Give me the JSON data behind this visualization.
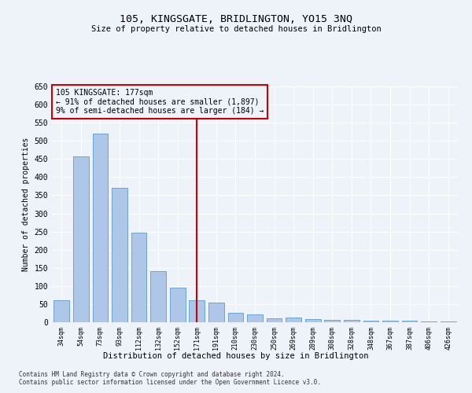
{
  "title": "105, KINGSGATE, BRIDLINGTON, YO15 3NQ",
  "subtitle": "Size of property relative to detached houses in Bridlington",
  "xlabel": "Distribution of detached houses by size in Bridlington",
  "ylabel": "Number of detached properties",
  "categories": [
    "34sqm",
    "54sqm",
    "73sqm",
    "93sqm",
    "112sqm",
    "132sqm",
    "152sqm",
    "171sqm",
    "191sqm",
    "210sqm",
    "230sqm",
    "250sqm",
    "269sqm",
    "289sqm",
    "308sqm",
    "328sqm",
    "348sqm",
    "367sqm",
    "387sqm",
    "406sqm",
    "426sqm"
  ],
  "values": [
    60,
    457,
    520,
    370,
    248,
    140,
    95,
    60,
    55,
    25,
    22,
    10,
    12,
    8,
    7,
    6,
    5,
    4,
    5,
    3,
    3
  ],
  "bar_color": "#aec6e8",
  "bar_edge_color": "#5b9bd5",
  "highlight_index": 7,
  "vline_color": "#cc0000",
  "annotation_title": "105 KINGSGATE: 177sqm",
  "annotation_line1": "← 91% of detached houses are smaller (1,897)",
  "annotation_line2": "9% of semi-detached houses are larger (184) →",
  "ylim": [
    0,
    650
  ],
  "yticks": [
    0,
    50,
    100,
    150,
    200,
    250,
    300,
    350,
    400,
    450,
    500,
    550,
    600,
    650
  ],
  "background_color": "#eef2f9",
  "grid_color": "#ffffff",
  "footnote1": "Contains HM Land Registry data © Crown copyright and database right 2024.",
  "footnote2": "Contains public sector information licensed under the Open Government Licence v3.0."
}
